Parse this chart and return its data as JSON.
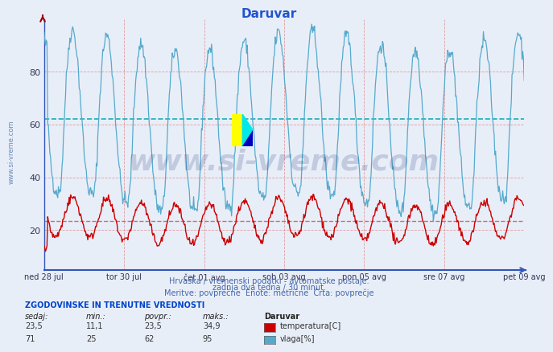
{
  "title": "Daruvar",
  "title_color": "#2255cc",
  "bg_color": "#e8eef8",
  "plot_bg_color": "#e8eef8",
  "temp_color": "#cc0000",
  "humidity_color": "#55aacc",
  "temp_avg": 23.5,
  "temp_min": 11.1,
  "temp_max": 34.9,
  "temp_curr": 23.5,
  "hum_avg": 62,
  "hum_min": 25,
  "hum_max": 95,
  "hum_curr": 71,
  "x_tick_labels": [
    "ned 28 jul",
    "tor 30 jul",
    "čet 01 avg",
    "sob 03 avg",
    "pon 05 avg",
    "sre 07 avg",
    "pet 09 avg"
  ],
  "y_ticks": [
    20,
    40,
    60,
    80
  ],
  "ylim": [
    5,
    100
  ],
  "n_points": 672,
  "subtitle1": "Hrvaška / vremenski podatki - avtomatske postaje.",
  "subtitle2": "zadnja dva tedna / 30 minut.",
  "subtitle3": "Meritve: povprečne  Enote: metrične  Črta: povprečje",
  "legend_title": "ZGODOVINSKE IN TRENUTNE VREDNOSTI",
  "col_sedaj": "sedaj:",
  "col_min": "min.:",
  "col_povpr": "povpr.:",
  "col_maks": "maks.:",
  "col_place": "Daruvar",
  "row1_label": "temperatura[C]",
  "row2_label": "vlaga[%]",
  "watermark": "www.si-vreme.com",
  "watermark_color": "#1a2a6e",
  "watermark_alpha": 0.18,
  "side_watermark_color": "#5577aa"
}
